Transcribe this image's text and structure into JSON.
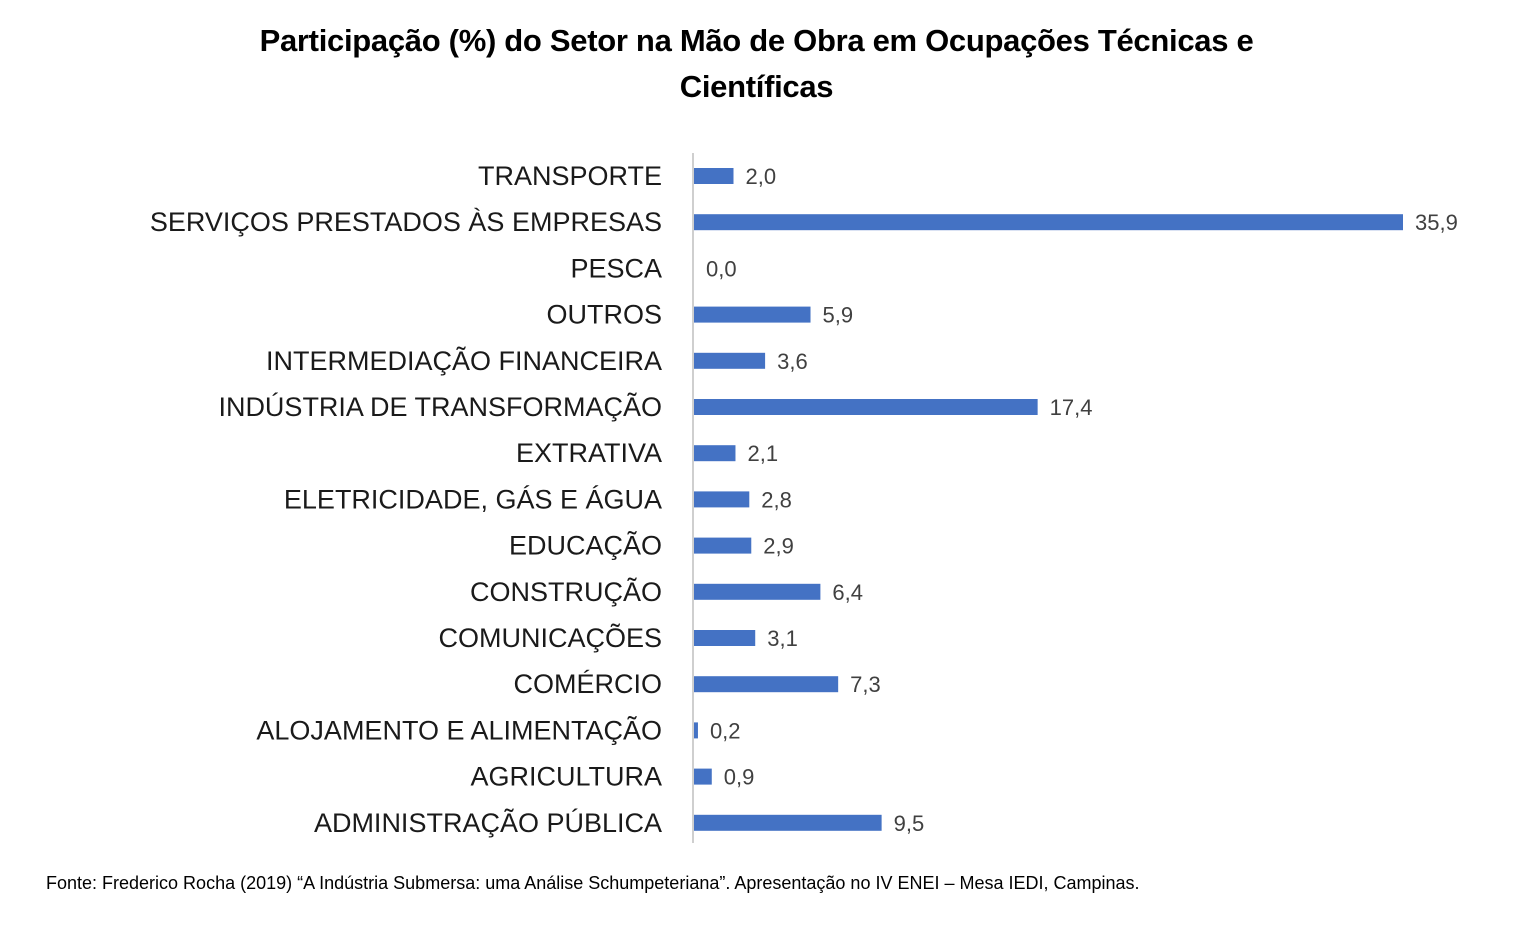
{
  "chart_data": {
    "type": "bar",
    "orientation": "horizontal",
    "title_lines": [
      "Participação (%) do Setor na Mão de Obra em Ocupações Técnicas e",
      "Científicas"
    ],
    "categories": [
      "TRANSPORTE",
      "SERVIÇOS PRESTADOS ÀS EMPRESAS",
      "PESCA",
      "OUTROS",
      "INTERMEDIAÇÃO FINANCEIRA",
      "INDÚSTRIA DE TRANSFORMAÇÃO",
      "EXTRATIVA",
      "ELETRICIDADE, GÁS E ÁGUA",
      "EDUCAÇÃO",
      "CONSTRUÇÃO",
      "COMUNICAÇÕES",
      "COMÉRCIO",
      "ALOJAMENTO E ALIMENTAÇÃO",
      "AGRICULTURA",
      "ADMINISTRAÇÃO PÚBLICA"
    ],
    "values": [
      2.0,
      35.9,
      0.0,
      5.9,
      3.6,
      17.4,
      2.1,
      2.8,
      2.9,
      6.4,
      3.1,
      7.3,
      0.2,
      0.9,
      9.5
    ],
    "value_labels": [
      "2,0",
      "35,9",
      "0,0",
      "5,9",
      "3,6",
      "17,4",
      "2,1",
      "2,8",
      "2,9",
      "6,4",
      "3,1",
      "7,3",
      "0,2",
      "0,9",
      "9,5"
    ],
    "xlabel": "",
    "ylabel": "",
    "xlim": [
      0,
      35.9
    ],
    "grid": false,
    "legend": "none",
    "bar_color": "#4472C4",
    "axis_color": "#BFBFBF"
  },
  "source": "Fonte: Frederico Rocha (2019) “A Indústria Submersa: uma Análise Schumpeteriana”. Apresentação no IV ENEI – Mesa IEDI, Campinas."
}
